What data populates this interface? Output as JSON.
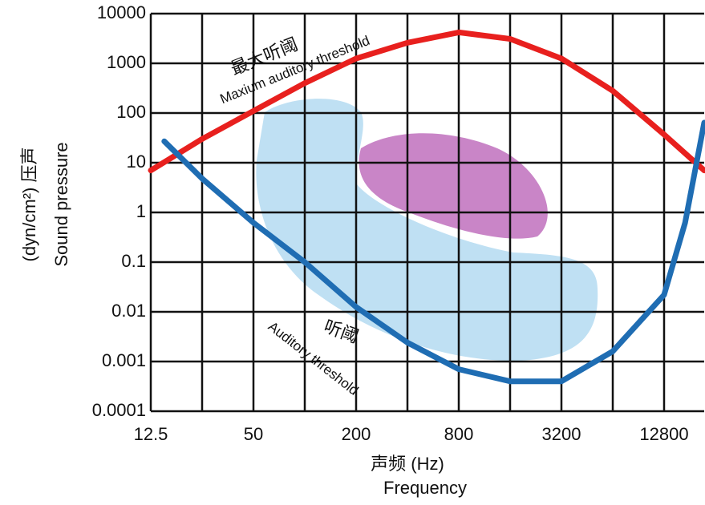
{
  "chart_data": {
    "type": "line",
    "xlabel": "声频 (Hz)",
    "xlabel2": "Frequency",
    "ylabel": "(dyn/cm²) 压声",
    "ylabel2": "Sound pressure",
    "annotations": [
      "最大听阈",
      "Maxium auditory threshold",
      "听阈",
      "Auditory threshold"
    ],
    "xscale": "log",
    "yscale": "log",
    "grid": true,
    "xlim": [
      12.5,
      22000
    ],
    "ylim": [
      0.0001,
      10000
    ],
    "xticks": [
      12.5,
      50,
      200,
      800,
      3200,
      12800
    ],
    "xminor": [
      25,
      100,
      400,
      1600,
      6400
    ],
    "yticks": [
      0.0001,
      0.001,
      0.01,
      0.1,
      1,
      10,
      100,
      1000,
      10000
    ],
    "series": [
      {
        "name": "最大听阈",
        "color": "#e8201e",
        "x": [
          12.5,
          25,
          50,
          100,
          200,
          400,
          800,
          1600,
          3200,
          6400,
          12800,
          22000
        ],
        "values": [
          7,
          30,
          110,
          400,
          1250,
          2600,
          4200,
          3100,
          1250,
          280,
          37,
          7
        ]
      },
      {
        "name": "听阈",
        "color": "#1f6db3",
        "x": [
          15,
          25,
          50,
          100,
          200,
          400,
          800,
          1600,
          3200,
          6400,
          12800,
          17000,
          22000
        ],
        "values": [
          27,
          4.8,
          0.62,
          0.1,
          0.0125,
          0.0024,
          0.0007,
          0.0004,
          0.0004,
          0.0016,
          0.022,
          0.62,
          64
        ]
      }
    ]
  }
}
